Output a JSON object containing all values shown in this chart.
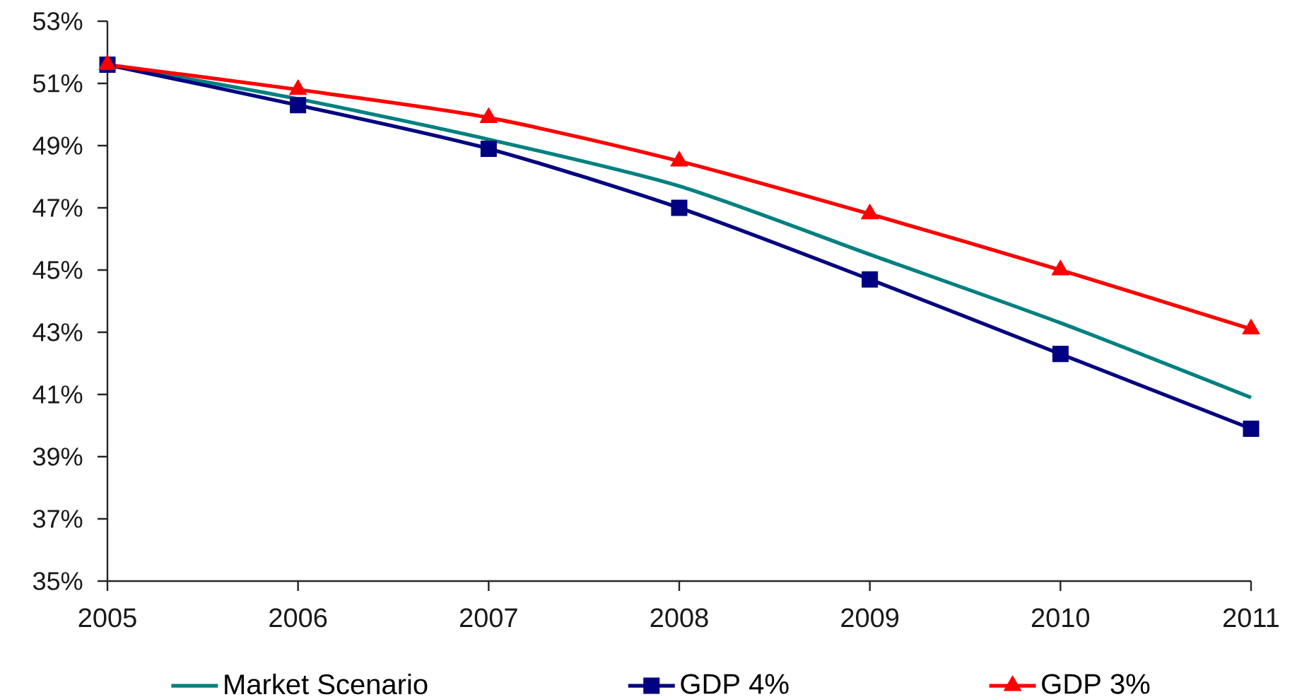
{
  "chart_data": {
    "type": "line",
    "categories": [
      "2005",
      "2006",
      "2007",
      "2008",
      "2009",
      "2010",
      "2011"
    ],
    "series": [
      {
        "name": "Market Scenario",
        "color": "#008080",
        "marker": "none",
        "values": [
          51.6,
          50.5,
          49.2,
          47.7,
          45.5,
          43.3,
          40.9
        ]
      },
      {
        "name": "GDP 4%",
        "color": "#000080",
        "marker": "square",
        "values": [
          51.6,
          50.3,
          48.9,
          47.0,
          44.7,
          42.3,
          39.9
        ]
      },
      {
        "name": "GDP 3%",
        "color": "#ff0000",
        "marker": "triangle",
        "values": [
          51.6,
          50.8,
          49.9,
          48.5,
          46.8,
          45.0,
          43.1
        ]
      }
    ],
    "ylim": [
      35,
      53
    ],
    "yticks": [
      {
        "value": 35,
        "label": "35%"
      },
      {
        "value": 37,
        "label": "37%"
      },
      {
        "value": 39,
        "label": "39%"
      },
      {
        "value": 41,
        "label": "41%"
      },
      {
        "value": 43,
        "label": "43%"
      },
      {
        "value": 45,
        "label": "45%"
      },
      {
        "value": 47,
        "label": "47%"
      },
      {
        "value": 49,
        "label": "49%"
      },
      {
        "value": 51,
        "label": "51%"
      },
      {
        "value": 53,
        "label": "53%"
      }
    ],
    "legend": "bottom"
  }
}
